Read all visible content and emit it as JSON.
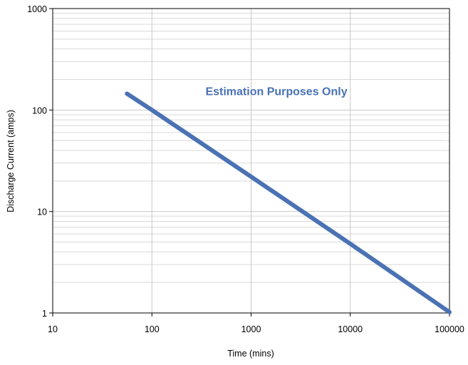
{
  "chart_data": {
    "type": "line",
    "title": "",
    "xlabel": "Time (mins)",
    "ylabel": "Discharge Current (amps)",
    "x_scale": "log",
    "y_scale": "log",
    "xlim": [
      10,
      100000
    ],
    "ylim": [
      1,
      1000
    ],
    "x_ticks": [
      "10",
      "100",
      "1000",
      "10000",
      "100000"
    ],
    "y_ticks": [
      "1",
      "10",
      "100",
      "1000"
    ],
    "grid": true,
    "series": [
      {
        "x": [
          56,
          100,
          1000,
          10000,
          100000
        ],
        "y": [
          145,
          100,
          22,
          4.8,
          1.02
        ]
      }
    ],
    "annotations": [
      {
        "text": "Estimation Purposes Only",
        "x": 1800,
        "y": 140
      }
    ],
    "colors": {
      "line": "#4a72b4",
      "annotation": "#4a72b4",
      "major_grid": "#c8c8c8",
      "minor_grid": "#d9d9d9",
      "axis": "#000000"
    }
  }
}
